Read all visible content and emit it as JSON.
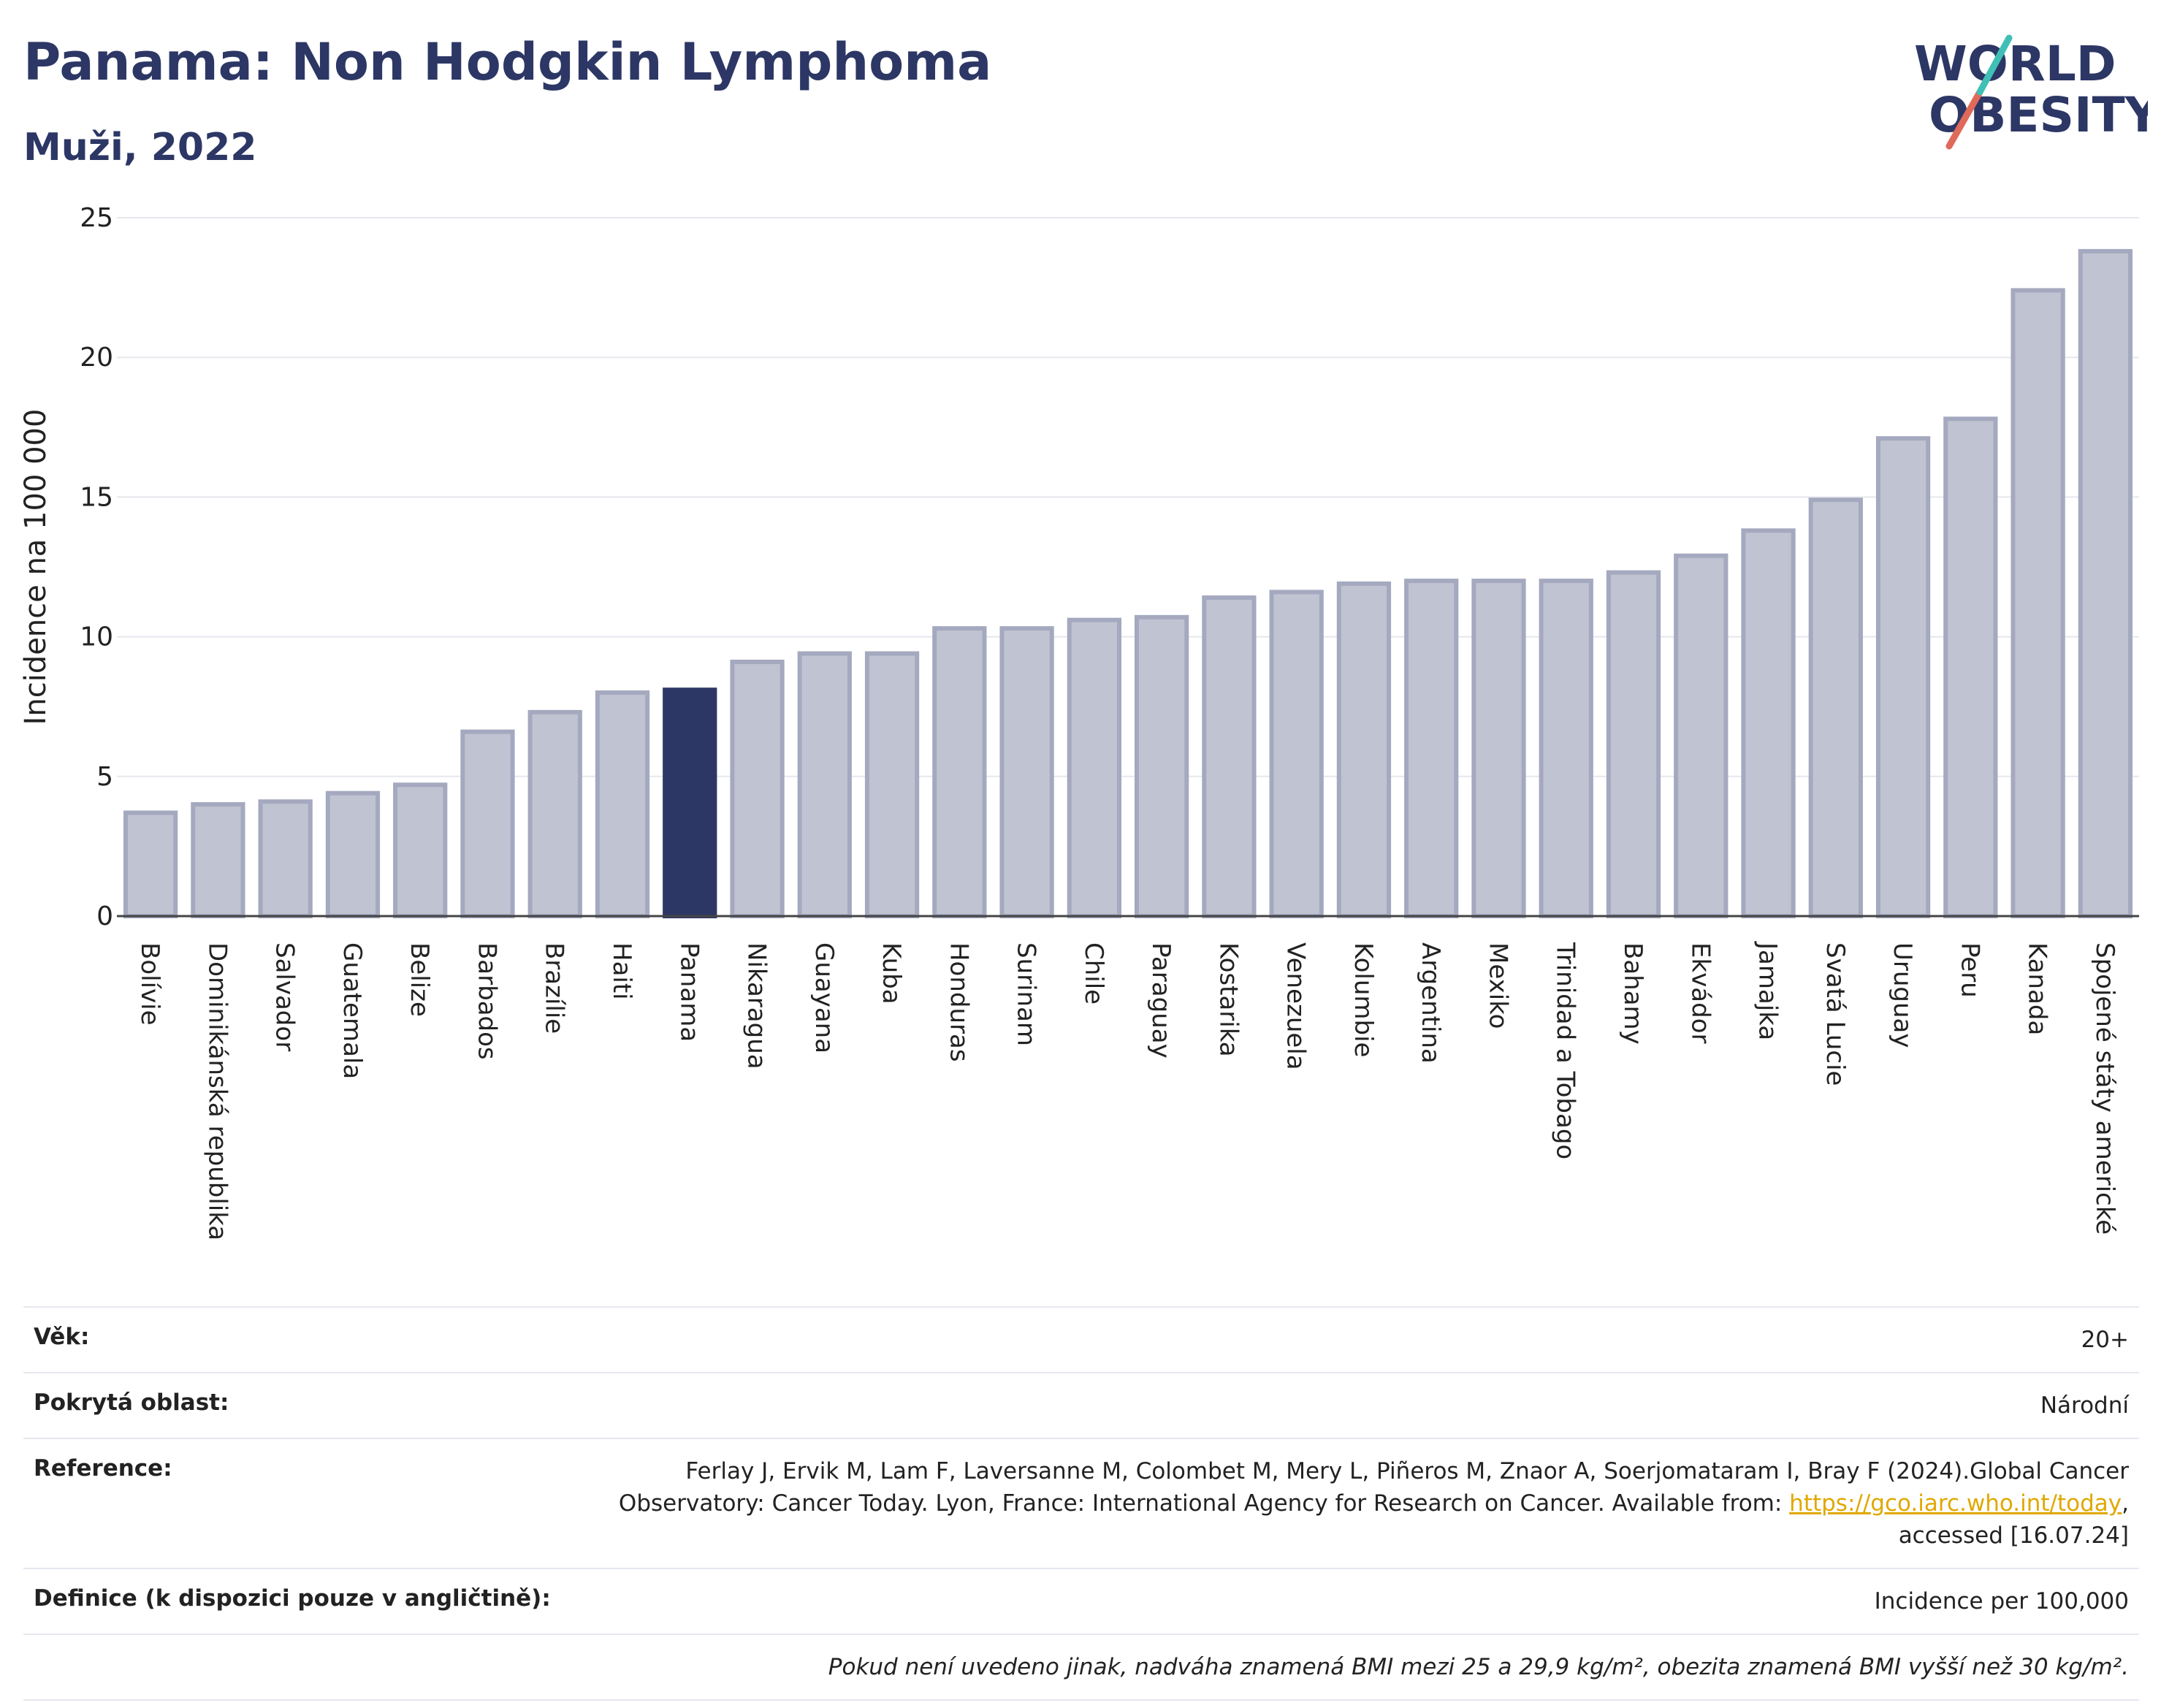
{
  "header": {
    "title": "Panama: Non Hodgkin Lymphoma",
    "subtitle": "Muži, 2022"
  },
  "logo": {
    "line1": "WORLD",
    "line2": "OBESITY"
  },
  "colors": {
    "highlight": "#2d3765",
    "bar": "#c0c3d1",
    "bar_stroke": "#a4a9bf"
  },
  "chart_data": {
    "type": "bar",
    "ylabel": "Incidence na 100 000",
    "ylim": [
      0,
      25
    ],
    "yticks": [
      0,
      5,
      10,
      15,
      20,
      25
    ],
    "grid": true,
    "highlight": "Panama",
    "categories": [
      "Bolívie",
      "Dominikánská republika",
      "Salvador",
      "Guatemala",
      "Belize",
      "Barbados",
      "Brazílie",
      "Haiti",
      "Panama",
      "Nikaragua",
      "Guayana",
      "Kuba",
      "Honduras",
      "Surinam",
      "Chile",
      "Paraguay",
      "Kostarika",
      "Venezuela",
      "Kolumbie",
      "Argentina",
      "Mexiko",
      "Trinidad a Tobago",
      "Bahamy",
      "Ekvádor",
      "Jamajka",
      "Svatá Lucie",
      "Uruguay",
      "Peru",
      "Kanada",
      "Spojené státy americké"
    ],
    "values": [
      3.7,
      4.0,
      4.1,
      4.4,
      4.7,
      6.6,
      7.3,
      8.0,
      8.1,
      9.1,
      9.4,
      9.4,
      10.3,
      10.3,
      10.6,
      10.7,
      11.4,
      11.6,
      11.9,
      12.0,
      12.0,
      12.0,
      12.3,
      12.9,
      13.8,
      14.9,
      17.1,
      17.8,
      22.4,
      23.8
    ]
  },
  "meta": {
    "age_label": "Věk:",
    "age_value": "20+",
    "coverage_label": "Pokrytá oblast:",
    "coverage_value": "Národní",
    "reference_label": "Reference:",
    "reference_text": "Ferlay J, Ervik M, Lam F, Laversanne M, Colombet M, Mery L, Piñeros M, Znaor A, Soerjomataram I, Bray F (2024).Global Cancer Observatory: Cancer Today. Lyon, France: International Agency for Research on Cancer. Available from:",
    "reference_link": "https://gco.iarc.who.int/today",
    "reference_tail": ", accessed [16.07.24]",
    "definition_label": "Definice (k dispozici pouze v angličtině):",
    "definition_value": "Incidence per 100,000",
    "note": "Pokud není uvedeno jinak, nadváha znamená BMI mezi 25 a 29,9 kg/m², obezita znamená BMI vyšší než 30 kg/m²."
  }
}
